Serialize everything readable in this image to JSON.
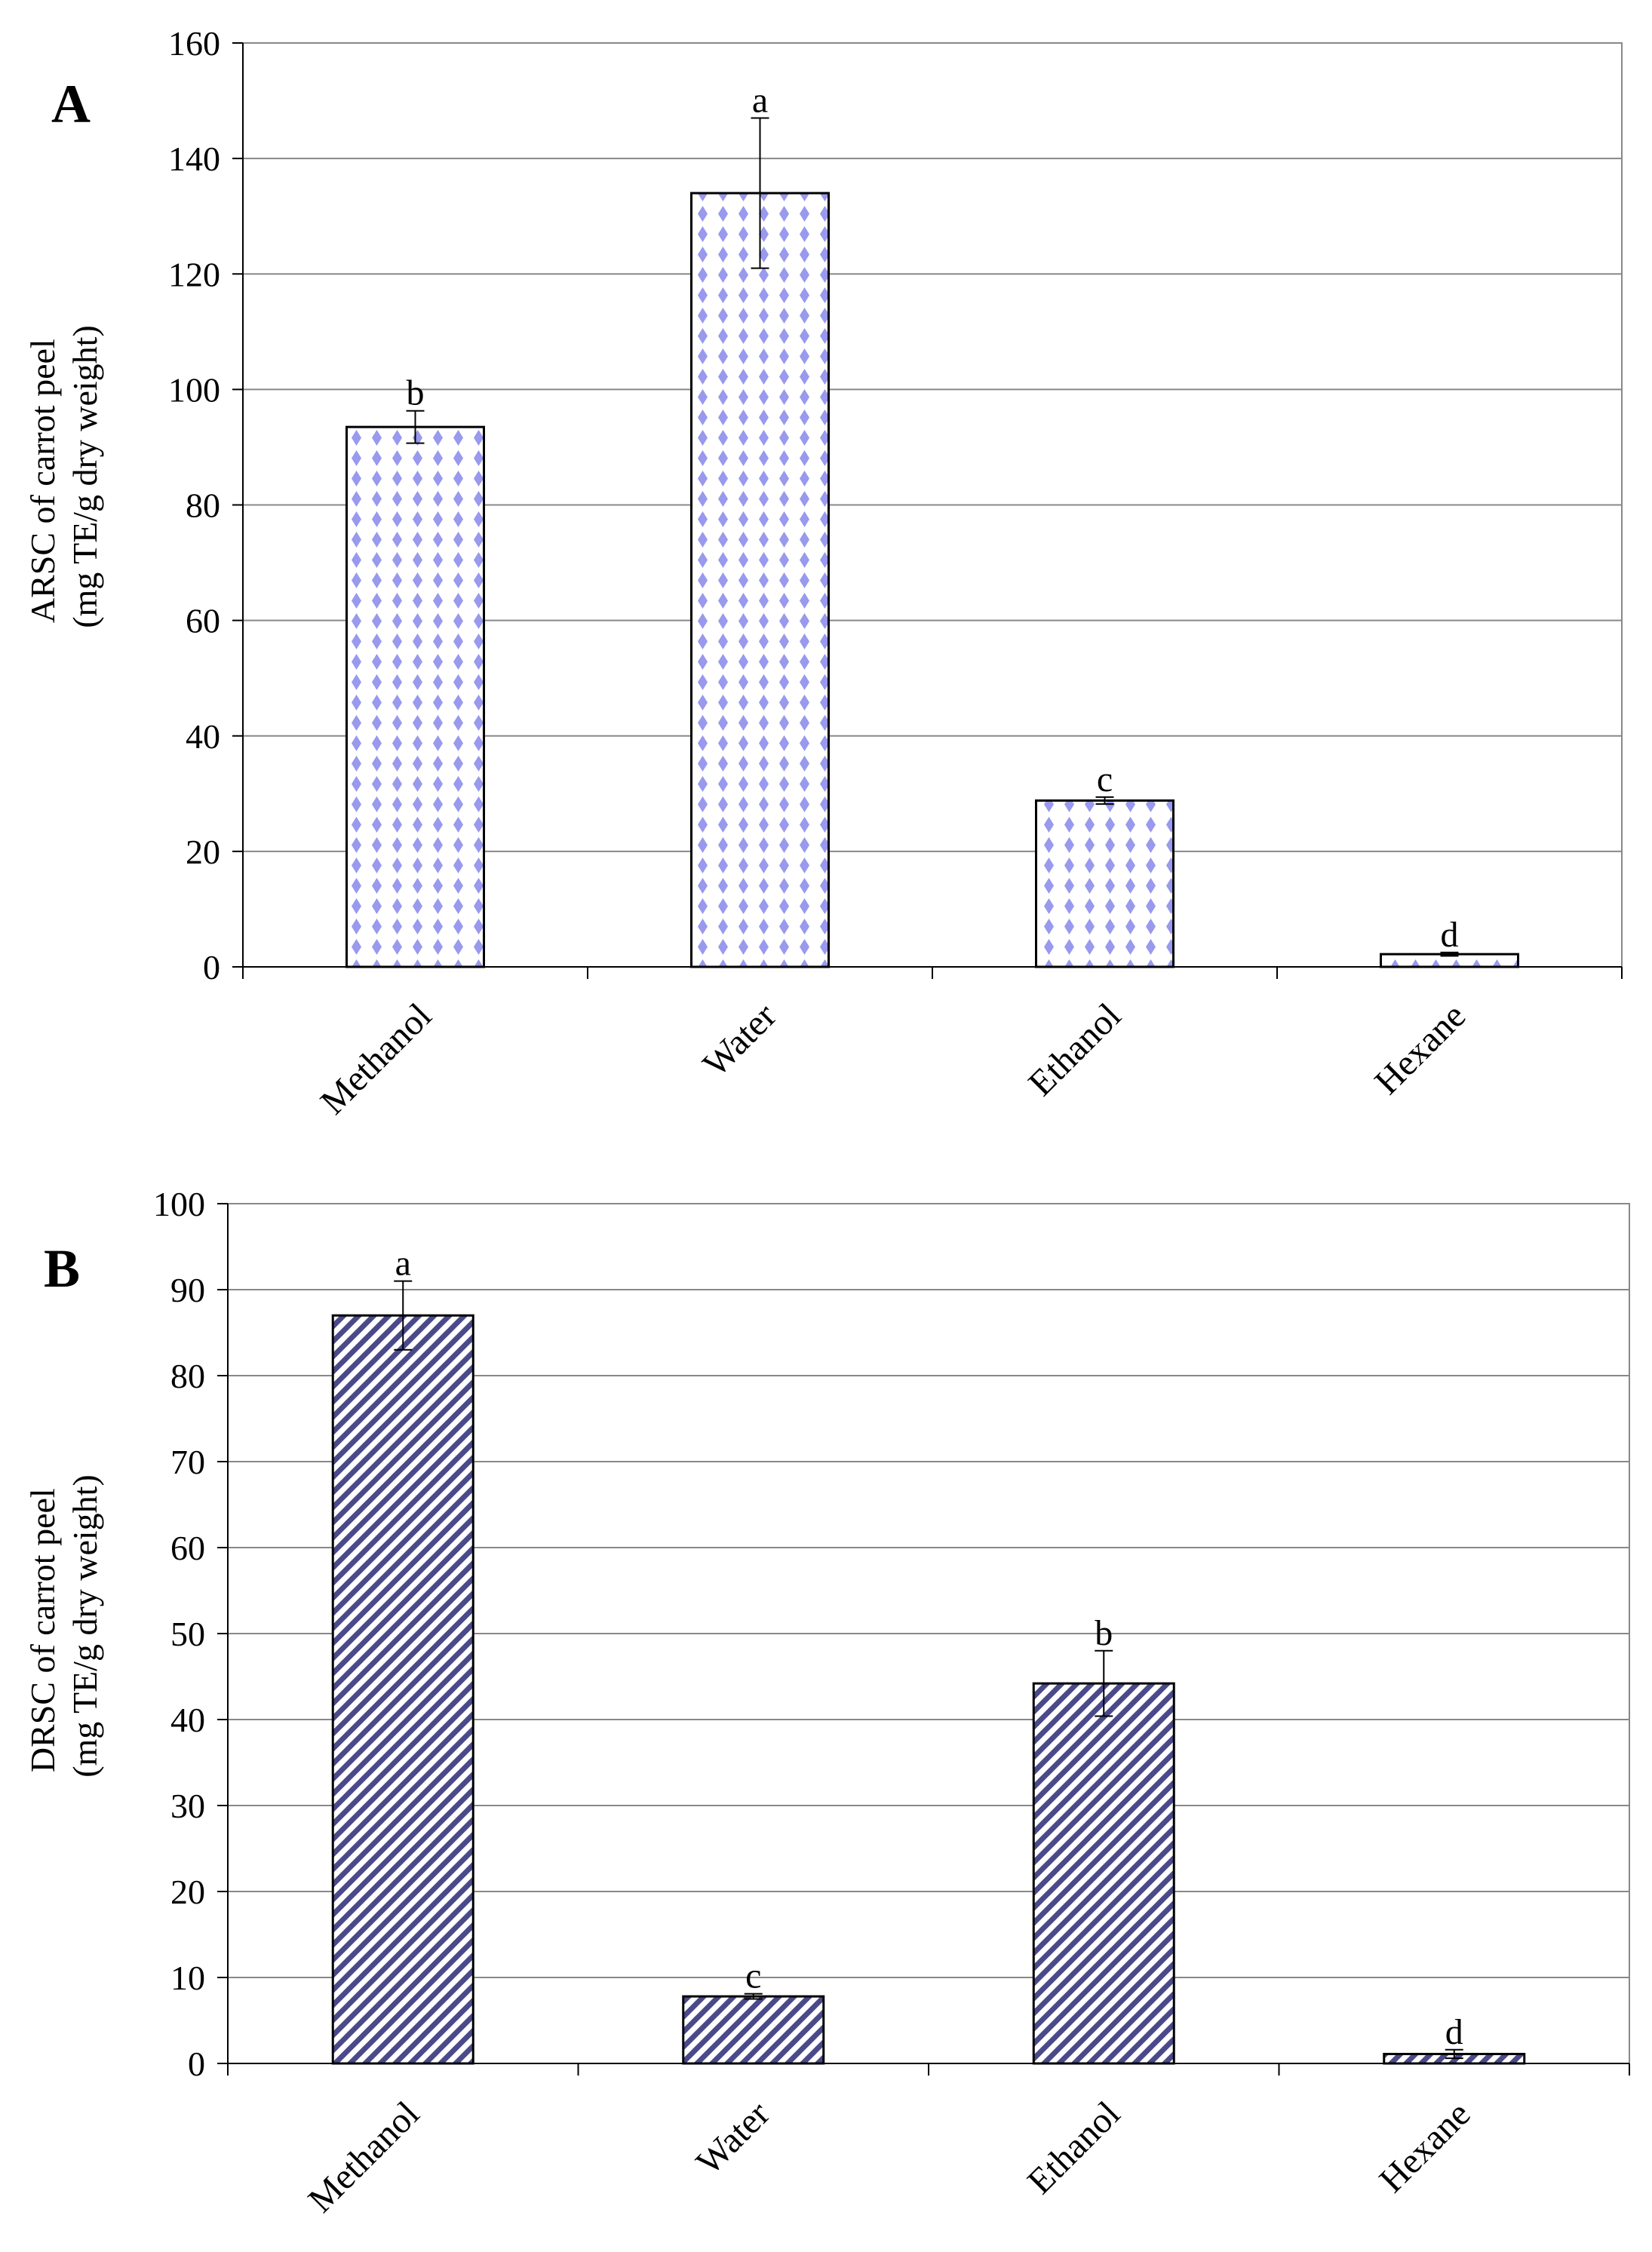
{
  "chart_data": [
    {
      "type": "bar",
      "panel": "A",
      "title": "",
      "xlabel": "",
      "ylabel_lines": [
        "ARSC of carrot peel",
        "(mg TE/g dry weight)"
      ],
      "ylim": [
        0,
        160
      ],
      "y_ticks": [
        0,
        20,
        40,
        60,
        80,
        100,
        120,
        140,
        160
      ],
      "grid": true,
      "fill_pattern": "dots",
      "colors": {
        "pattern": "#9999ee",
        "bar_bg": "#ffffff",
        "edge": "#000000",
        "grid": "#888888"
      },
      "categories": [
        "Methanol",
        "Water",
        "Ethanol",
        "Hexane"
      ],
      "values": [
        93.5,
        134,
        28.8,
        2.2
      ],
      "errors": [
        2.8,
        13,
        0.6,
        0.3
      ],
      "significance": [
        "b",
        "a",
        "c",
        "d"
      ]
    },
    {
      "type": "bar",
      "panel": "B",
      "title": "",
      "xlabel": "",
      "ylabel_lines": [
        "DRSC of carrot peel",
        "(mg TE/g dry weight)"
      ],
      "ylim": [
        0,
        100
      ],
      "y_ticks": [
        0,
        10,
        20,
        30,
        40,
        50,
        60,
        70,
        80,
        90,
        100
      ],
      "grid": true,
      "fill_pattern": "diagonal",
      "colors": {
        "pattern": "#4a4a8a",
        "bar_bg": "#ffffff",
        "edge": "#000000",
        "grid": "#888888"
      },
      "categories": [
        "Methanol",
        "Water",
        "Ethanol",
        "Hexane"
      ],
      "values": [
        87,
        7.8,
        44.2,
        1.1
      ],
      "errors": [
        4,
        0.3,
        3.8,
        0.5
      ],
      "significance": [
        "a",
        "c",
        "b",
        "d"
      ]
    }
  ]
}
